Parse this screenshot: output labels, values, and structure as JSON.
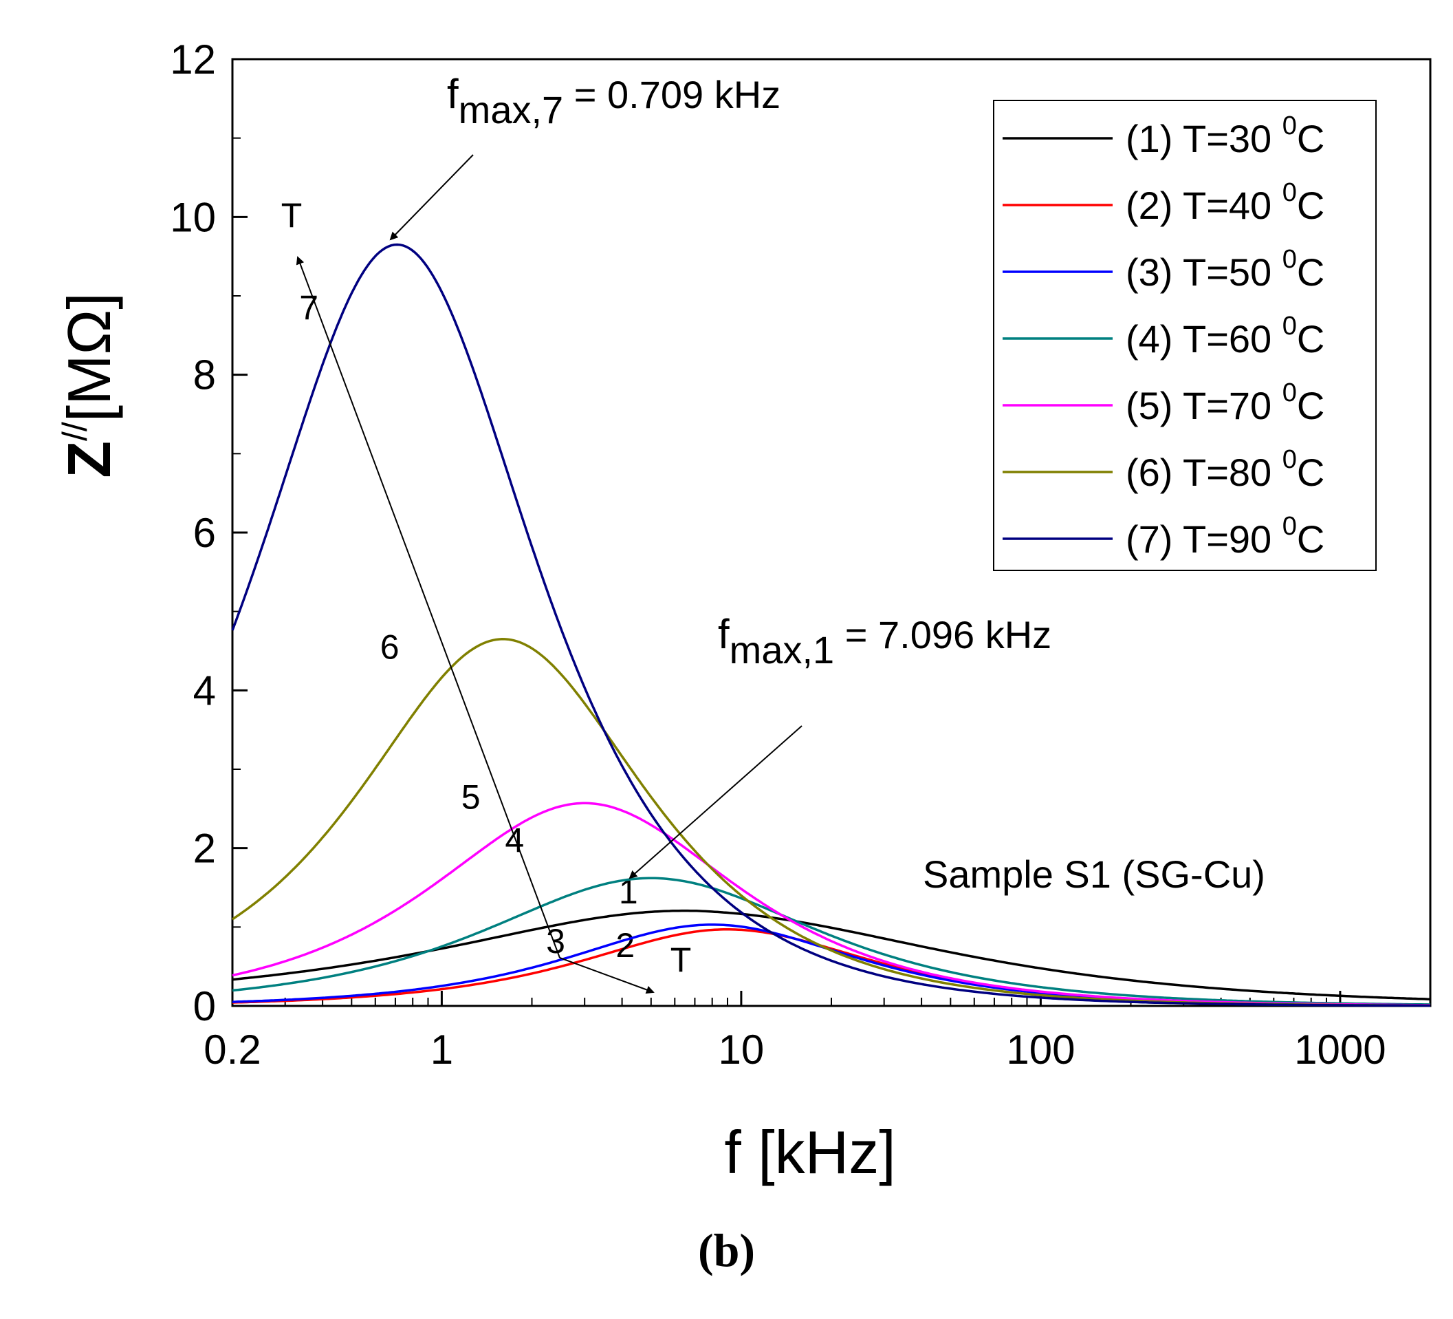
{
  "chart_data": {
    "type": "line",
    "xscale": "log",
    "xlabel": "f [kHz]",
    "ylabel_main": "Z",
    "ylabel_sup": "//",
    "ylabel_unit": "[MΩ]",
    "xlim": [
      0.2,
      2000
    ],
    "ylim": [
      0,
      12
    ],
    "x_ticks": [
      0.2,
      1,
      10,
      100,
      1000
    ],
    "x_tick_labels": [
      "0.2",
      "1",
      "10",
      "100",
      "1000"
    ],
    "y_ticks": [
      0,
      2,
      4,
      6,
      8,
      10,
      12
    ],
    "y_tick_labels": [
      "0",
      "2",
      "4",
      "6",
      "8",
      "10",
      "12"
    ],
    "legend_position": "top-right",
    "series": [
      {
        "id": "1",
        "legend_prefix": "(1) T=30 ",
        "legend_sup": "0",
        "legend_suffix": "C",
        "color": "#000000",
        "fmax": 7.096,
        "zmax": 1.18,
        "w": 1.7,
        "tail": 0.05,
        "label": "1",
        "label_x": 4.2,
        "label_y": 1.3
      },
      {
        "id": "2",
        "legend_prefix": "(2) T=40 ",
        "legend_sup": "0",
        "legend_suffix": "C",
        "color": "#ff0000",
        "fmax": 9.0,
        "zmax": 0.97,
        "w": 1.0,
        "tail": 0,
        "label": "2",
        "label_x": 4.1,
        "label_y": 0.62
      },
      {
        "id": "3",
        "legend_prefix": "(3) T=50 ",
        "legend_sup": "0",
        "legend_suffix": "C",
        "color": "#0000ff",
        "fmax": 8.0,
        "zmax": 1.03,
        "w": 1.0,
        "tail": 0,
        "label": "3",
        "label_x": 2.4,
        "label_y": 0.67
      },
      {
        "id": "4",
        "legend_prefix": "(4) T=60 ",
        "legend_sup": "0",
        "legend_suffix": "C",
        "color": "#008080",
        "fmax": 5.0,
        "zmax": 1.62,
        "w": 1.15,
        "tail": 0,
        "label": "4",
        "label_x": 1.75,
        "label_y": 1.95
      },
      {
        "id": "5",
        "legend_prefix": "(5) T=70 ",
        "legend_sup": "0",
        "legend_suffix": "C",
        "color": "#ff00ff",
        "fmax": 3.0,
        "zmax": 2.57,
        "w": 1.05,
        "tail": 0,
        "label": "5",
        "label_x": 1.25,
        "label_y": 2.5
      },
      {
        "id": "6",
        "legend_prefix": "(6) T=80 ",
        "legend_sup": "0",
        "legend_suffix": "C",
        "color": "#808000",
        "fmax": 1.6,
        "zmax": 4.65,
        "w": 0.98,
        "tail": 0,
        "label": "6",
        "label_x": 0.67,
        "label_y": 4.4
      },
      {
        "id": "7",
        "legend_prefix": "(7) T=90 ",
        "legend_sup": "0",
        "legend_suffix": "C",
        "color": "#000080",
        "fmax": 0.709,
        "zmax": 9.65,
        "w": 0.95,
        "tail": 0,
        "label": "7",
        "label_x": 0.36,
        "label_y": 8.7
      }
    ],
    "annotations": {
      "fmax7": {
        "main": "f",
        "sub": "max,7",
        "rest": " = 0.709 kHz"
      },
      "fmax1": {
        "main": "f",
        "sub": "max,1",
        "rest": " = 7.096 kHz"
      },
      "arrow_label_top": "T",
      "arrow_label_bottom": "T",
      "sample": "Sample S1 (SG-Cu)"
    }
  },
  "panel_label": "(b)"
}
